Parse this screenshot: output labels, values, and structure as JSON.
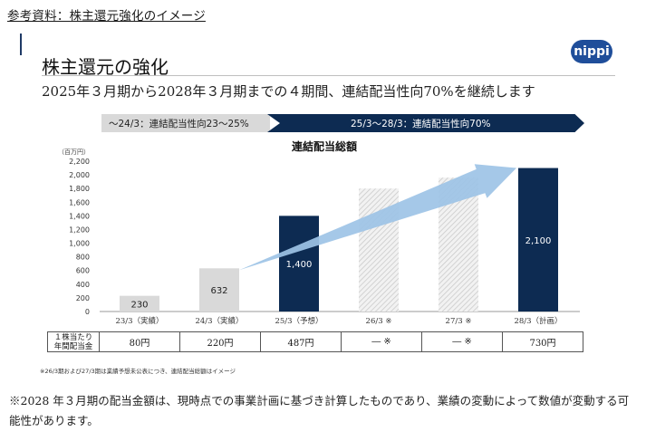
{
  "header": {
    "text": "参考資料：株主還元強化のイメージ"
  },
  "slide": {
    "title": "株主還元の強化",
    "logo_text": "nippi",
    "subtitle": "2025年３月期から2028年３月期までの４期間、連結配当性向70%を継続します",
    "phases": [
      {
        "label": "～24/3：連結配当性向23～25%"
      },
      {
        "label": "25/3～28/3：連結配当性向70%"
      }
    ]
  },
  "chart_data": {
    "type": "bar",
    "title": "連結配当総額",
    "unit_label": "（百万円）",
    "ylim": [
      0,
      2200
    ],
    "yticks": [
      0,
      200,
      400,
      600,
      800,
      1000,
      1200,
      1400,
      1600,
      1800,
      2000,
      2200
    ],
    "ytick_labels": [
      "0",
      "200",
      "400",
      "600",
      "800",
      "1,000",
      "1,200",
      "1,400",
      "1,600",
      "1,800",
      "2,000",
      "2,200"
    ],
    "categories": [
      "23/3（実績）",
      "24/3（実績）",
      "25/3（予想）",
      "26/3 ※",
      "27/3 ※",
      "28/3（計画）"
    ],
    "values": [
      230,
      632,
      1400,
      1800,
      1960,
      2100
    ],
    "value_labels": [
      "230",
      "632",
      "1,400",
      "",
      "",
      "2,100"
    ],
    "bar_styles": [
      "gray",
      "gray",
      "navy",
      "hatched",
      "hatched",
      "navy"
    ],
    "colors": {
      "gray": "#d9d9d9",
      "navy": "#0d2b52",
      "arrow": "#9dc3e6"
    },
    "annotation": "growth-arrow"
  },
  "dividend_table": {
    "row_label": "１株当たり\n年間配当金",
    "row_label_line1": "１株当たり",
    "row_label_line2": "年間配当金",
    "values": [
      "80円",
      "220円",
      "487円",
      "― ※",
      "― ※",
      "730円"
    ]
  },
  "footnotes": {
    "small": "※26/3期および27/3期は業績予想未公表につき、連結配当総額はイメージ",
    "main": "※2028 年３月期の配当金額は、現時点での事業計画に基づき計算したものであり、業績の変動によって数値が変動する可能性があります。"
  }
}
